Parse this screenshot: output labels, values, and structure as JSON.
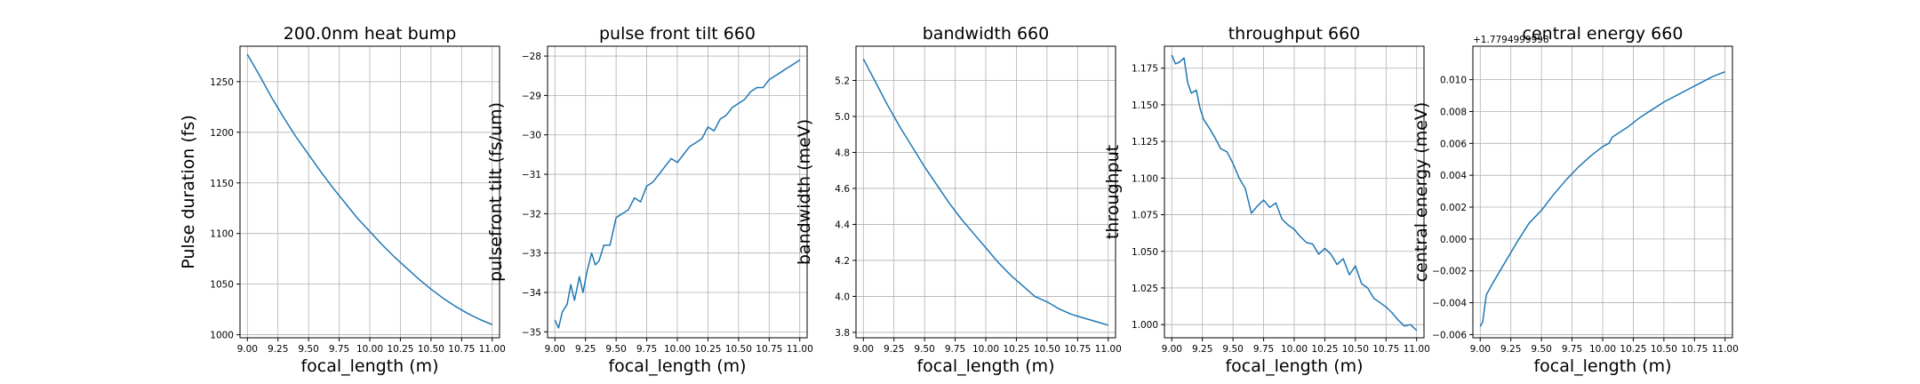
{
  "chart_data": [
    {
      "type": "line",
      "title": "200.0nm heat bump",
      "xlabel": "focal_length (m)",
      "ylabel": "Pulse duration (fs)",
      "xlim": [
        8.94,
        11.06
      ],
      "ylim": [
        997,
        1285
      ],
      "xticks": [
        "9.00",
        "9.25",
        "9.50",
        "9.75",
        "10.00",
        "10.25",
        "10.50",
        "10.75",
        "11.00"
      ],
      "yticks": [
        1000,
        1050,
        1100,
        1150,
        1200,
        1250
      ],
      "ytick_labels": [
        "1000",
        "1050",
        "1100",
        "1150",
        "1200",
        "1250"
      ],
      "offset_text": "",
      "grid": true,
      "series": [
        {
          "x": [
            9.0,
            9.1,
            9.2,
            9.3,
            9.4,
            9.5,
            9.6,
            9.7,
            9.8,
            9.9,
            10.0,
            10.1,
            10.2,
            10.3,
            10.4,
            10.5,
            10.6,
            10.7,
            10.8,
            10.9,
            11.0
          ],
          "y": [
            1277,
            1256,
            1234,
            1214,
            1195,
            1178,
            1161,
            1145,
            1130,
            1115,
            1102,
            1089,
            1077,
            1066,
            1055,
            1045,
            1036,
            1028,
            1021,
            1015,
            1010
          ]
        }
      ]
    },
    {
      "type": "line",
      "title": "pulse front tilt 660",
      "xlabel": "focal_length (m)",
      "ylabel": "pulsefront tilt (fs/um)",
      "xlim": [
        8.94,
        11.06
      ],
      "ylim": [
        -35.15,
        -27.75
      ],
      "xticks": [
        "9.00",
        "9.25",
        "9.50",
        "9.75",
        "10.00",
        "10.25",
        "10.50",
        "10.75",
        "11.00"
      ],
      "yticks": [
        -35,
        -34,
        -33,
        -32,
        -31,
        -30,
        -29,
        -28
      ],
      "ytick_labels": [
        "−35",
        "−34",
        "−33",
        "−32",
        "−31",
        "−30",
        "−29",
        "−28"
      ],
      "offset_text": "",
      "grid": true,
      "series": [
        {
          "x": [
            9.0,
            9.03,
            9.06,
            9.1,
            9.13,
            9.16,
            9.2,
            9.23,
            9.26,
            9.3,
            9.33,
            9.36,
            9.4,
            9.45,
            9.5,
            9.55,
            9.6,
            9.65,
            9.7,
            9.75,
            9.8,
            9.85,
            9.9,
            9.95,
            10.0,
            10.05,
            10.1,
            10.15,
            10.2,
            10.25,
            10.3,
            10.35,
            10.4,
            10.45,
            10.5,
            10.55,
            10.6,
            10.65,
            10.7,
            10.75,
            10.8,
            10.85,
            10.9,
            10.95,
            11.0
          ],
          "y": [
            -34.7,
            -34.9,
            -34.5,
            -34.3,
            -33.8,
            -34.2,
            -33.6,
            -34.0,
            -33.5,
            -33.0,
            -33.3,
            -33.2,
            -32.8,
            -32.8,
            -32.1,
            -32.0,
            -31.9,
            -31.6,
            -31.7,
            -31.3,
            -31.2,
            -31.0,
            -30.8,
            -30.6,
            -30.7,
            -30.5,
            -30.3,
            -30.2,
            -30.1,
            -29.8,
            -29.9,
            -29.6,
            -29.5,
            -29.3,
            -29.2,
            -29.1,
            -28.9,
            -28.8,
            -28.8,
            -28.6,
            -28.5,
            -28.4,
            -28.3,
            -28.2,
            -28.1
          ]
        }
      ]
    },
    {
      "type": "line",
      "title": "bandwidth 660",
      "xlabel": "focal_length (m)",
      "ylabel": "bandwidth (meV)",
      "xlim": [
        8.94,
        11.06
      ],
      "ylim": [
        3.77,
        5.39
      ],
      "xticks": [
        "9.00",
        "9.25",
        "9.50",
        "9.75",
        "10.00",
        "10.25",
        "10.50",
        "10.75",
        "11.00"
      ],
      "yticks": [
        3.8,
        4.0,
        4.2,
        4.4,
        4.6,
        4.8,
        5.0,
        5.2
      ],
      "ytick_labels": [
        "3.8",
        "4.0",
        "4.2",
        "4.4",
        "4.6",
        "4.8",
        "5.0",
        "5.2"
      ],
      "offset_text": "",
      "grid": true,
      "series": [
        {
          "x": [
            9.0,
            9.1,
            9.2,
            9.3,
            9.4,
            9.5,
            9.6,
            9.7,
            9.8,
            9.9,
            10.0,
            10.1,
            10.2,
            10.3,
            10.4,
            10.5,
            10.6,
            10.7,
            10.8,
            10.9,
            11.0
          ],
          "y": [
            5.32,
            5.19,
            5.06,
            4.94,
            4.83,
            4.72,
            4.62,
            4.52,
            4.43,
            4.35,
            4.27,
            4.19,
            4.12,
            4.06,
            4.0,
            3.97,
            3.93,
            3.9,
            3.88,
            3.86,
            3.84
          ]
        }
      ]
    },
    {
      "type": "line",
      "title": "throughput 660",
      "xlabel": "focal_length (m)",
      "ylabel": "throughput",
      "xlim": [
        8.94,
        11.06
      ],
      "ylim": [
        0.991,
        1.19
      ],
      "xticks": [
        "9.00",
        "9.25",
        "9.50",
        "9.75",
        "10.00",
        "10.25",
        "10.50",
        "10.75",
        "11.00"
      ],
      "yticks": [
        1.0,
        1.025,
        1.05,
        1.075,
        1.1,
        1.125,
        1.15,
        1.175
      ],
      "ytick_labels": [
        "1.000",
        "1.025",
        "1.050",
        "1.075",
        "1.100",
        "1.125",
        "1.150",
        "1.175"
      ],
      "offset_text": "",
      "grid": true,
      "series": [
        {
          "x": [
            9.0,
            9.03,
            9.06,
            9.1,
            9.13,
            9.16,
            9.2,
            9.23,
            9.26,
            9.3,
            9.35,
            9.4,
            9.45,
            9.5,
            9.55,
            9.6,
            9.65,
            9.7,
            9.75,
            9.8,
            9.85,
            9.9,
            9.95,
            10.0,
            10.05,
            10.1,
            10.15,
            10.2,
            10.25,
            10.3,
            10.35,
            10.4,
            10.45,
            10.5,
            10.55,
            10.6,
            10.65,
            10.7,
            10.75,
            10.8,
            10.85,
            10.9,
            10.95,
            11.0
          ],
          "y": [
            1.184,
            1.178,
            1.179,
            1.182,
            1.165,
            1.158,
            1.16,
            1.148,
            1.14,
            1.135,
            1.128,
            1.12,
            1.118,
            1.11,
            1.1,
            1.093,
            1.076,
            1.081,
            1.085,
            1.08,
            1.083,
            1.072,
            1.068,
            1.065,
            1.06,
            1.056,
            1.055,
            1.048,
            1.052,
            1.048,
            1.041,
            1.045,
            1.034,
            1.04,
            1.028,
            1.025,
            1.018,
            1.015,
            1.012,
            1.008,
            1.003,
            0.999,
            1.0,
            0.996
          ]
        }
      ]
    },
    {
      "type": "line",
      "title": "central energy 660",
      "xlabel": "focal_length (m)",
      "ylabel": "central energy (meV)",
      "xlim": [
        8.94,
        11.06
      ],
      "ylim": [
        -0.0062,
        0.0121
      ],
      "xticks": [
        "9.00",
        "9.25",
        "9.50",
        "9.75",
        "10.00",
        "10.25",
        "10.50",
        "10.75",
        "11.00"
      ],
      "yticks": [
        -0.006,
        -0.004,
        -0.002,
        0.0,
        0.002,
        0.004,
        0.006,
        0.008,
        0.01
      ],
      "ytick_labels": [
        "−0.006",
        "−0.004",
        "−0.002",
        "0.000",
        "0.002",
        "0.004",
        "0.006",
        "0.008",
        "0.010"
      ],
      "offset_text": "+1.7794999998",
      "grid": true,
      "series": [
        {
          "x": [
            9.0,
            9.02,
            9.05,
            9.1,
            9.2,
            9.3,
            9.4,
            9.5,
            9.52,
            9.6,
            9.7,
            9.8,
            9.9,
            10.0,
            10.05,
            10.08,
            10.2,
            10.3,
            10.4,
            10.5,
            10.6,
            10.7,
            10.8,
            10.9,
            11.0
          ],
          "y": [
            -0.0055,
            -0.0052,
            -0.0035,
            -0.0028,
            -0.0015,
            -0.0002,
            0.001,
            0.0018,
            0.002,
            0.0028,
            0.0037,
            0.0045,
            0.0052,
            0.0058,
            0.006,
            0.0064,
            0.007,
            0.0076,
            0.0081,
            0.0086,
            0.009,
            0.0094,
            0.0098,
            0.0102,
            0.0105
          ]
        }
      ]
    }
  ]
}
